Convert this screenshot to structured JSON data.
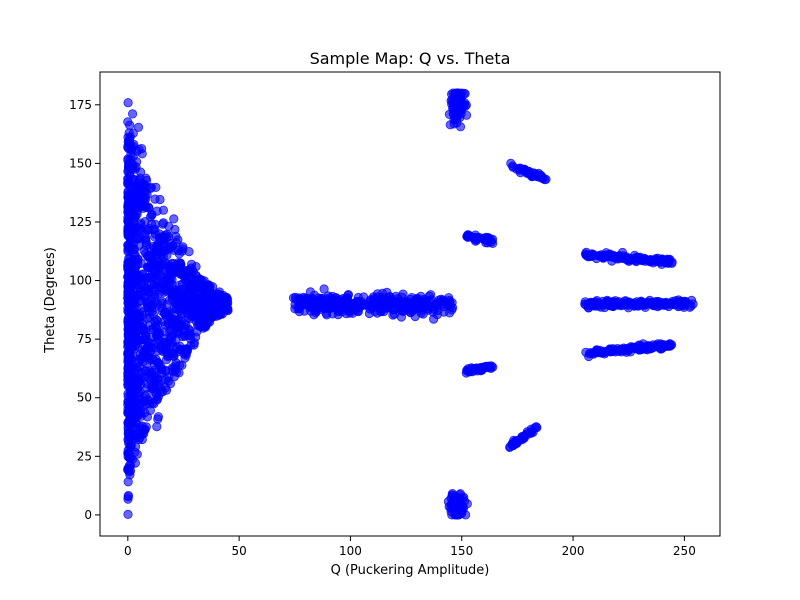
{
  "chart_data": {
    "type": "scatter",
    "title": "Sample Map: Q vs. Theta",
    "xlabel": "Q (Puckering Amplitude)",
    "ylabel": "Theta (Degrees)",
    "xlim": [
      -12.5,
      266
    ],
    "ylim": [
      -9,
      189
    ],
    "xticks": [
      0,
      50,
      100,
      150,
      200,
      250
    ],
    "yticks": [
      0,
      25,
      50,
      75,
      100,
      125,
      150,
      175
    ],
    "grid": false,
    "marker_color": "#0000ff",
    "marker_alpha": 0.6,
    "series": [
      {
        "clusters": [
          {
            "shape": "wedge",
            "x_range": [
              0,
              45
            ],
            "y_center": 90,
            "y_spread": 88,
            "count": 1400
          },
          {
            "shape": "band",
            "x_range": [
              74,
              146
            ],
            "y_center": 90,
            "y_spread": 2,
            "count": 320
          },
          {
            "shape": "blob",
            "x_center": 148,
            "x_spread": 3,
            "y_center": 175,
            "y_spread": 5,
            "count": 90
          },
          {
            "shape": "blob",
            "x_center": 148,
            "x_spread": 3,
            "y_center": 4,
            "y_spread": 4,
            "count": 90
          },
          {
            "shape": "line",
            "x_range": [
              152,
              164
            ],
            "y_range": [
              119,
              117
            ],
            "count": 40
          },
          {
            "shape": "line",
            "x_range": [
              152,
              164
            ],
            "y_range": [
              61.5,
              63.5
            ],
            "count": 40
          },
          {
            "shape": "line",
            "x_range": [
              172,
              188
            ],
            "y_range": [
              149,
              143
            ],
            "count": 40
          },
          {
            "shape": "line",
            "x_range": [
              171,
              184
            ],
            "y_range": [
              29,
              37.5
            ],
            "count": 40
          },
          {
            "shape": "line",
            "x_range": [
              205,
              245
            ],
            "y_range": [
              111,
              108
            ],
            "count": 120
          },
          {
            "shape": "band",
            "x_range": [
              205,
              254
            ],
            "y_center": 90,
            "y_spread": 0.8,
            "count": 160
          },
          {
            "shape": "line",
            "x_range": [
              205,
              245
            ],
            "y_range": [
              69,
              72.5
            ],
            "count": 120
          }
        ]
      }
    ]
  }
}
